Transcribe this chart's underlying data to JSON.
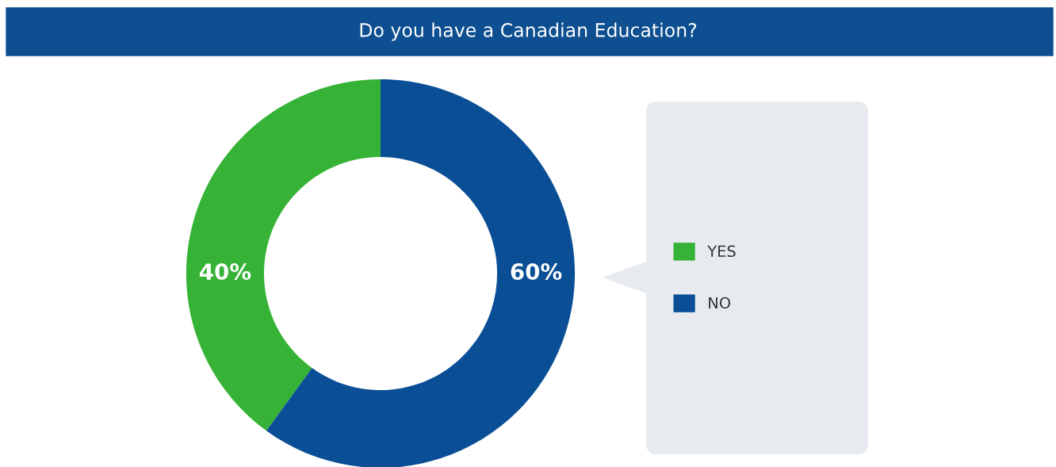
{
  "chart_data": {
    "type": "donut",
    "title": "Do you have a Canadian Education?",
    "categories": [
      "YES",
      "NO"
    ],
    "values": [
      40,
      60
    ],
    "colors": [
      "#36b336",
      "#0a4f96"
    ],
    "value_labels": [
      "40%",
      "60%"
    ],
    "legend": "right"
  }
}
